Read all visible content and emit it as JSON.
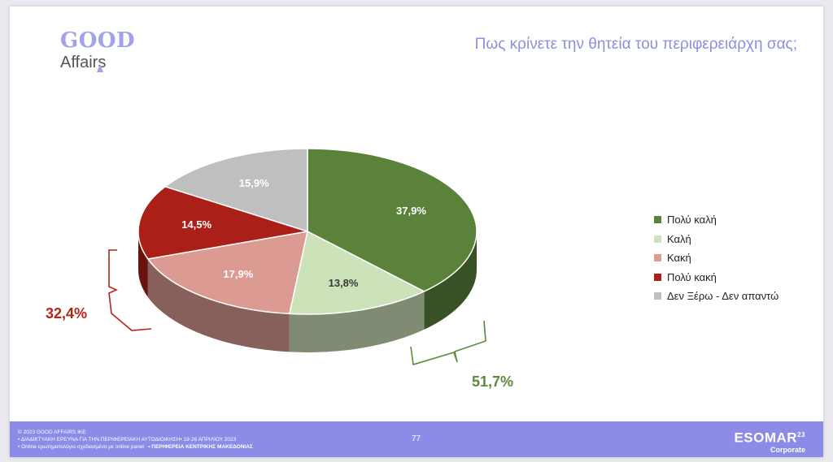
{
  "logo": {
    "line1": "GOOD",
    "line2": "Affairs"
  },
  "title": "Πως κρίνετε την θητεία του περιφερειάρχη σας;",
  "chart_data": {
    "type": "pie",
    "categories": [
      "Πολύ καλή",
      "Καλή",
      "Κακή",
      "Πολύ κακή",
      "Δεν Ξέρω - Δεν απαντώ"
    ],
    "values": [
      37.9,
      13.8,
      17.9,
      14.5,
      15.9
    ],
    "labels": [
      "37,9%",
      "13,8%",
      "17,9%",
      "14,5%",
      "15,9%"
    ],
    "colors": [
      "#5b823b",
      "#cde2b9",
      "#db9b93",
      "#aa1f18",
      "#bfbfbf"
    ],
    "legend_position": "right",
    "annotations": [
      {
        "text": "51,7%",
        "color": "#5b8b3a",
        "groups": [
          "Πολύ καλή",
          "Καλή"
        ]
      },
      {
        "text": "32,4%",
        "color": "#b42418",
        "groups": [
          "Κακή",
          "Πολύ κακή"
        ]
      }
    ]
  },
  "footer": {
    "line1": "© 2023 GOOD AFFAIRS IKE",
    "line2": "• ΔΙΑΔΙΚΤΥΑΚΗ ΕΡΕΥΝΑ  ΓΙΑ ΤΗΝ ΠΕΡΙΦΕΡΕΙΑΚΗ ΑΥΤΟΔΙΟΙΚΗΣΗ• 19-26 ΑΠΡΙΛΙΟΥ 2023",
    "line3a": "• Online ερωτηματολόγιο σχεδιασμένο με online panel",
    "line3b": "• ΠΕΡΙΦΕΡΕΙΑ ΚΕΝΤΡΙΚΗΣ ΜΑΚΕΔΟΝΙΑΣ",
    "page": "77",
    "brand": "ESOMAR",
    "brand_sup": "23",
    "brand_sub": "Corporate"
  }
}
